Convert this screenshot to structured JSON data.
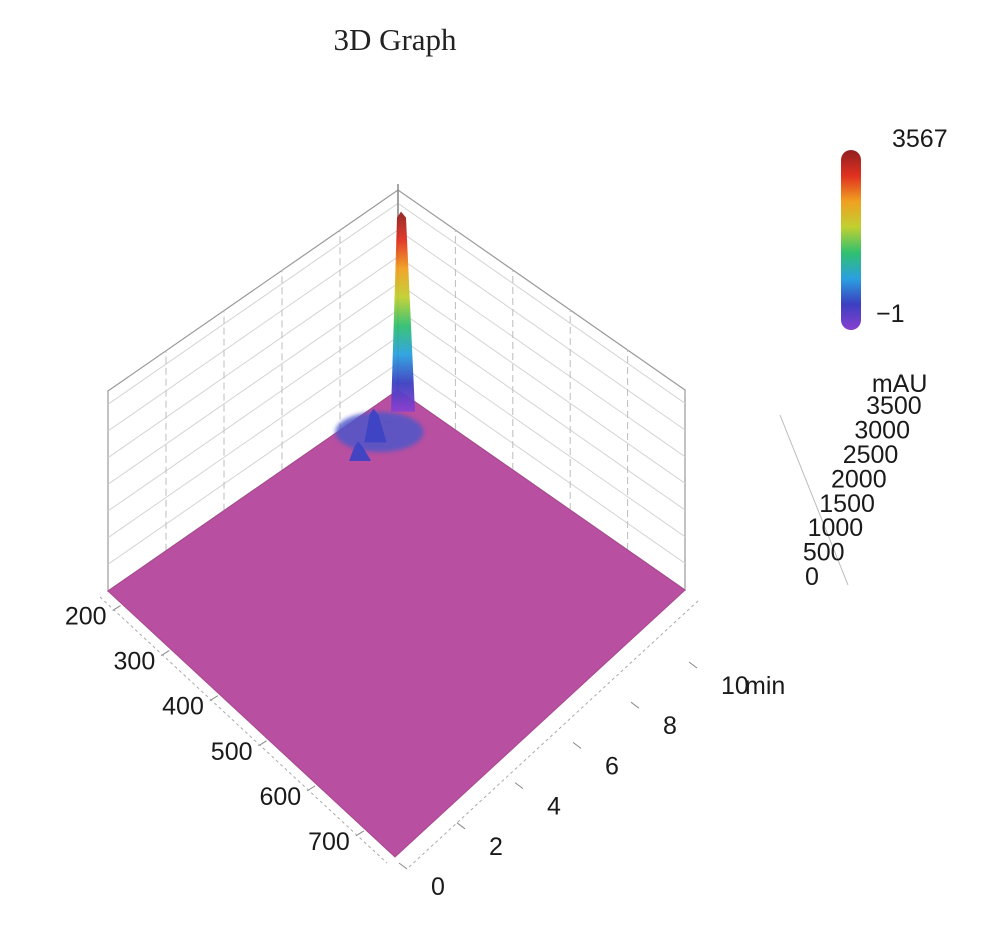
{
  "chart_data": {
    "type": "surface3d",
    "title": "3D Graph",
    "x_axis": {
      "ticks": [
        "200",
        "300",
        "400",
        "500",
        "600",
        "700"
      ],
      "range": [
        170,
        760
      ]
    },
    "time_axis": {
      "ticks": [
        "0",
        "2",
        "4",
        "6",
        "8",
        "10"
      ],
      "unit": "min",
      "range": [
        0,
        10
      ]
    },
    "z_axis": {
      "unit": "mAU",
      "ticks": [
        "0",
        "500",
        "1000",
        "1500",
        "2000",
        "2500",
        "3000",
        "3500"
      ],
      "range": [
        0,
        3567
      ]
    },
    "colorbar": {
      "max_label": "3567",
      "min_label": "−1",
      "max": 3567,
      "min": -1,
      "colors": [
        "#8a3fd0",
        "#3b3fc0",
        "#2aa0e0",
        "#30c070",
        "#c0d030",
        "#f0a020",
        "#e03020",
        "#902020"
      ]
    },
    "surface_color": "#b94fa0",
    "peaks": [
      {
        "wavelength": 200,
        "time": 9.6,
        "value": 3567
      },
      {
        "wavelength": 215,
        "time": 8.4,
        "value": 600
      },
      {
        "wavelength": 225,
        "time": 7.7,
        "value": 350
      }
    ]
  }
}
